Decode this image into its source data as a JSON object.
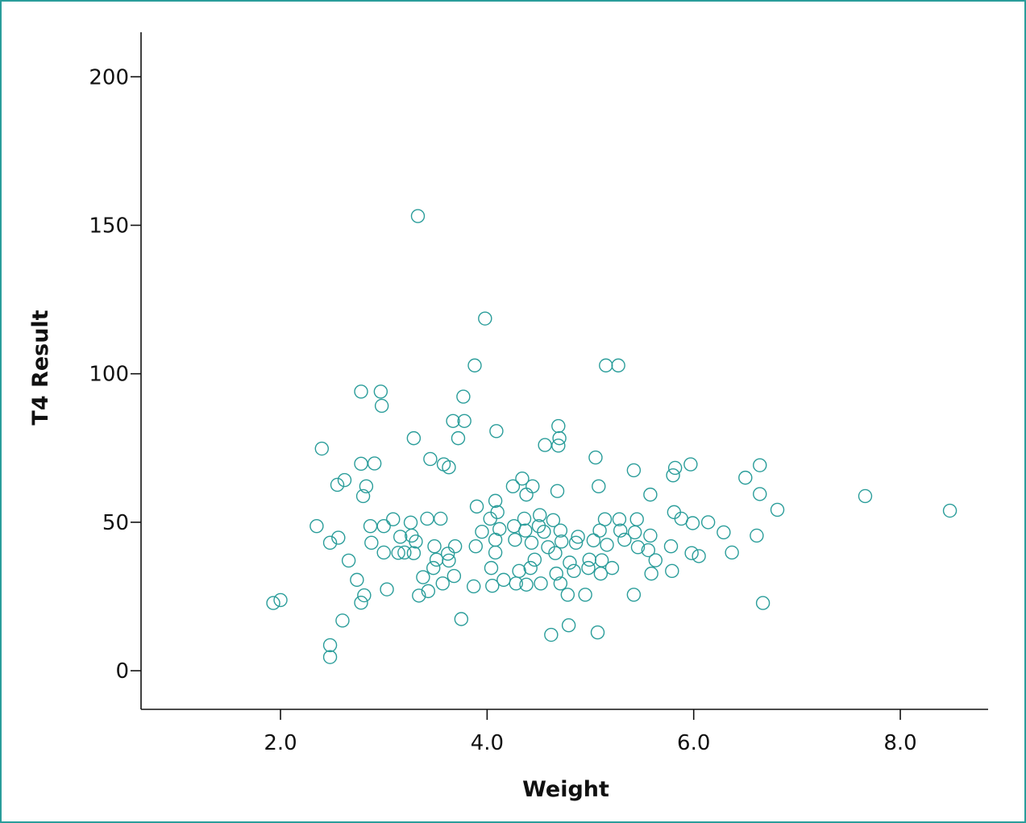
{
  "chart_data": {
    "type": "scatter",
    "title": "",
    "xlabel": "Weight",
    "ylabel": "T4 Result",
    "xlim": [
      0.65,
      8.85
    ],
    "ylim": [
      -13,
      215
    ],
    "xticks": [
      2.0,
      4.0,
      6.0,
      8.0
    ],
    "xtick_labels": [
      "2.0",
      "4.0",
      "6.0",
      "8.0"
    ],
    "yticks": [
      0,
      50,
      100,
      150,
      200
    ],
    "ytick_labels": [
      "0",
      "50",
      "100",
      "150",
      "200"
    ],
    "grid": false,
    "legend": "none",
    "marker": "open-circle",
    "marker_color": "#2a9d9a",
    "series": [
      {
        "points": [
          [
            1.93,
            22.8
          ],
          [
            2.0,
            23.8
          ],
          [
            2.35,
            48.7
          ],
          [
            2.4,
            74.8
          ],
          [
            2.48,
            43.1
          ],
          [
            2.48,
            8.6
          ],
          [
            2.48,
            4.6
          ],
          [
            2.55,
            62.6
          ],
          [
            2.56,
            44.8
          ],
          [
            2.6,
            16.9
          ],
          [
            2.62,
            64.2
          ],
          [
            2.66,
            37.1
          ],
          [
            2.74,
            30.6
          ],
          [
            2.78,
            69.7
          ],
          [
            2.78,
            22.9
          ],
          [
            2.78,
            94.0
          ],
          [
            2.8,
            58.8
          ],
          [
            2.81,
            25.4
          ],
          [
            2.83,
            62.1
          ],
          [
            2.87,
            48.7
          ],
          [
            2.88,
            43.1
          ],
          [
            2.91,
            69.8
          ],
          [
            2.97,
            94.0
          ],
          [
            2.98,
            89.2
          ],
          [
            3.0,
            39.8
          ],
          [
            3.0,
            48.7
          ],
          [
            3.03,
            27.4
          ],
          [
            3.09,
            51.0
          ],
          [
            3.14,
            39.7
          ],
          [
            3.16,
            45.1
          ],
          [
            3.2,
            39.8
          ],
          [
            3.26,
            49.9
          ],
          [
            3.27,
            45.5
          ],
          [
            3.29,
            39.6
          ],
          [
            3.29,
            78.3
          ],
          [
            3.31,
            43.5
          ],
          [
            3.33,
            153.1
          ],
          [
            3.34,
            25.3
          ],
          [
            3.38,
            31.5
          ],
          [
            3.42,
            51.2
          ],
          [
            3.43,
            26.8
          ],
          [
            3.45,
            71.3
          ],
          [
            3.48,
            34.6
          ],
          [
            3.49,
            41.9
          ],
          [
            3.51,
            37.4
          ],
          [
            3.55,
            51.2
          ],
          [
            3.57,
            29.4
          ],
          [
            3.58,
            69.5
          ],
          [
            3.62,
            39.4
          ],
          [
            3.63,
            68.5
          ],
          [
            3.63,
            37.1
          ],
          [
            3.67,
            84.1
          ],
          [
            3.68,
            31.9
          ],
          [
            3.69,
            41.9
          ],
          [
            3.72,
            78.3
          ],
          [
            3.75,
            17.4
          ],
          [
            3.77,
            92.3
          ],
          [
            3.78,
            84.1
          ],
          [
            3.87,
            28.4
          ],
          [
            3.88,
            102.8
          ],
          [
            3.89,
            41.9
          ],
          [
            3.9,
            55.3
          ],
          [
            3.95,
            46.8
          ],
          [
            3.98,
            118.6
          ],
          [
            4.03,
            51.2
          ],
          [
            4.04,
            34.6
          ],
          [
            4.05,
            28.6
          ],
          [
            4.08,
            57.2
          ],
          [
            4.08,
            39.8
          ],
          [
            4.08,
            44.1
          ],
          [
            4.09,
            80.7
          ],
          [
            4.1,
            53.4
          ],
          [
            4.12,
            47.7
          ],
          [
            4.16,
            30.6
          ],
          [
            4.25,
            62.1
          ],
          [
            4.26,
            48.7
          ],
          [
            4.27,
            44.1
          ],
          [
            4.28,
            29.4
          ],
          [
            4.31,
            33.6
          ],
          [
            4.34,
            64.7
          ],
          [
            4.36,
            51.2
          ],
          [
            4.37,
            47.2
          ],
          [
            4.38,
            59.3
          ],
          [
            4.38,
            29.0
          ],
          [
            4.42,
            34.6
          ],
          [
            4.43,
            43.1
          ],
          [
            4.44,
            62.1
          ],
          [
            4.46,
            37.4
          ],
          [
            4.5,
            48.7
          ],
          [
            4.51,
            52.4
          ],
          [
            4.52,
            29.4
          ],
          [
            4.55,
            46.8
          ],
          [
            4.56,
            76.0
          ],
          [
            4.59,
            41.6
          ],
          [
            4.62,
            12.1
          ],
          [
            4.64,
            50.7
          ],
          [
            4.66,
            39.6
          ],
          [
            4.67,
            32.7
          ],
          [
            4.68,
            60.5
          ],
          [
            4.69,
            82.4
          ],
          [
            4.69,
            75.8
          ],
          [
            4.7,
            78.3
          ],
          [
            4.71,
            29.4
          ],
          [
            4.71,
            47.2
          ],
          [
            4.72,
            43.5
          ],
          [
            4.78,
            25.6
          ],
          [
            4.79,
            15.3
          ],
          [
            4.8,
            36.4
          ],
          [
            4.84,
            33.6
          ],
          [
            4.86,
            43.1
          ],
          [
            4.88,
            45.1
          ],
          [
            4.95,
            25.6
          ],
          [
            4.98,
            34.6
          ],
          [
            4.99,
            37.4
          ],
          [
            5.03,
            43.9
          ],
          [
            5.05,
            71.8
          ],
          [
            5.07,
            12.9
          ],
          [
            5.08,
            62.1
          ],
          [
            5.09,
            47.2
          ],
          [
            5.1,
            32.7
          ],
          [
            5.11,
            37.2
          ],
          [
            5.14,
            51.0
          ],
          [
            5.15,
            102.8
          ],
          [
            5.16,
            42.4
          ],
          [
            5.21,
            34.6
          ],
          [
            5.27,
            102.8
          ],
          [
            5.28,
            51.0
          ],
          [
            5.29,
            47.2
          ],
          [
            5.33,
            44.1
          ],
          [
            5.42,
            67.5
          ],
          [
            5.42,
            25.6
          ],
          [
            5.43,
            46.6
          ],
          [
            5.45,
            51.0
          ],
          [
            5.46,
            41.6
          ],
          [
            5.56,
            40.6
          ],
          [
            5.58,
            45.5
          ],
          [
            5.58,
            59.3
          ],
          [
            5.59,
            32.7
          ],
          [
            5.63,
            37.2
          ],
          [
            5.78,
            41.9
          ],
          [
            5.79,
            33.6
          ],
          [
            5.8,
            65.8
          ],
          [
            5.81,
            53.4
          ],
          [
            5.82,
            68.3
          ],
          [
            5.88,
            51.2
          ],
          [
            5.97,
            69.5
          ],
          [
            5.98,
            39.6
          ],
          [
            5.99,
            49.7
          ],
          [
            6.05,
            38.6
          ],
          [
            6.14,
            50.0
          ],
          [
            6.29,
            46.6
          ],
          [
            6.37,
            39.8
          ],
          [
            6.5,
            65.0
          ],
          [
            6.61,
            45.5
          ],
          [
            6.64,
            69.2
          ],
          [
            6.64,
            59.5
          ],
          [
            6.67,
            22.8
          ],
          [
            6.81,
            54.2
          ],
          [
            7.66,
            58.8
          ],
          [
            8.48,
            53.9
          ]
        ]
      }
    ]
  }
}
